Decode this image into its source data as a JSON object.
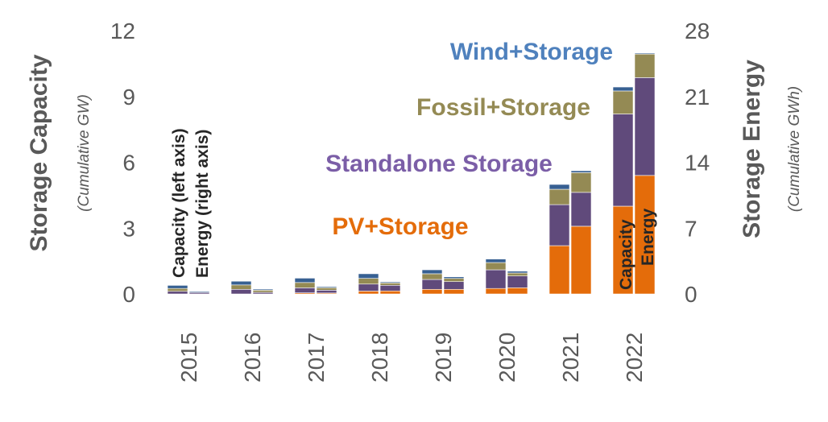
{
  "chart_data": {
    "type": "bar",
    "stacked": true,
    "categories": [
      "2015",
      "2016",
      "2017",
      "2018",
      "2019",
      "2020",
      "2021",
      "2022"
    ],
    "left_axis": {
      "title": "Storage Capacity",
      "subtitle": "(Cumulative GW)",
      "ticks": [
        "0",
        "3",
        "6",
        "9",
        "12"
      ],
      "ylim": [
        0,
        12
      ]
    },
    "right_axis": {
      "title": "Storage Energy",
      "subtitle": "(Cumulative GWh)",
      "ticks": [
        "0",
        "7",
        "14",
        "21",
        "28"
      ],
      "ylim": [
        0,
        28
      ]
    },
    "annotations": {
      "capacity_note": "Capacity (left axis)",
      "energy_note": "Energy (right axis)",
      "capacity_bar": "Capacity",
      "energy_bar": "Energy"
    },
    "series": [
      {
        "name": "PV+Storage",
        "color": "#E46C0A",
        "label_color": "#E46C0A",
        "capacity": [
          0,
          0,
          0.05,
          0.13,
          0.21,
          0.25,
          2.2,
          4.0
        ],
        "energy": [
          0,
          0,
          0.1,
          0.32,
          0.49,
          0.66,
          7.2,
          12.6
        ]
      },
      {
        "name": "Standalone Storage",
        "color": "#604A7B",
        "label_color": "#7030A0",
        "capacity": [
          0.12,
          0.21,
          0.23,
          0.32,
          0.45,
          0.85,
          1.87,
          4.2
        ],
        "energy": [
          0.15,
          0.17,
          0.3,
          0.6,
          0.82,
          1.25,
          3.6,
          10.4
        ]
      },
      {
        "name": "Fossil+Storage",
        "color": "#948A54",
        "label_color": "#948A54",
        "capacity": [
          0.13,
          0.2,
          0.24,
          0.26,
          0.26,
          0.33,
          0.7,
          1.05
        ],
        "energy": [
          0.01,
          0.23,
          0.26,
          0.25,
          0.34,
          0.32,
          2.1,
          2.5
        ]
      },
      {
        "name": "Wind+Storage",
        "color": "#376092",
        "label_color": "#4F81BD",
        "capacity": [
          0.14,
          0.17,
          0.2,
          0.21,
          0.18,
          0.16,
          0.22,
          0.18
        ],
        "energy": [
          0.1,
          0.11,
          0.11,
          0.11,
          0.17,
          0.19,
          0.2,
          0.1
        ]
      }
    ]
  }
}
